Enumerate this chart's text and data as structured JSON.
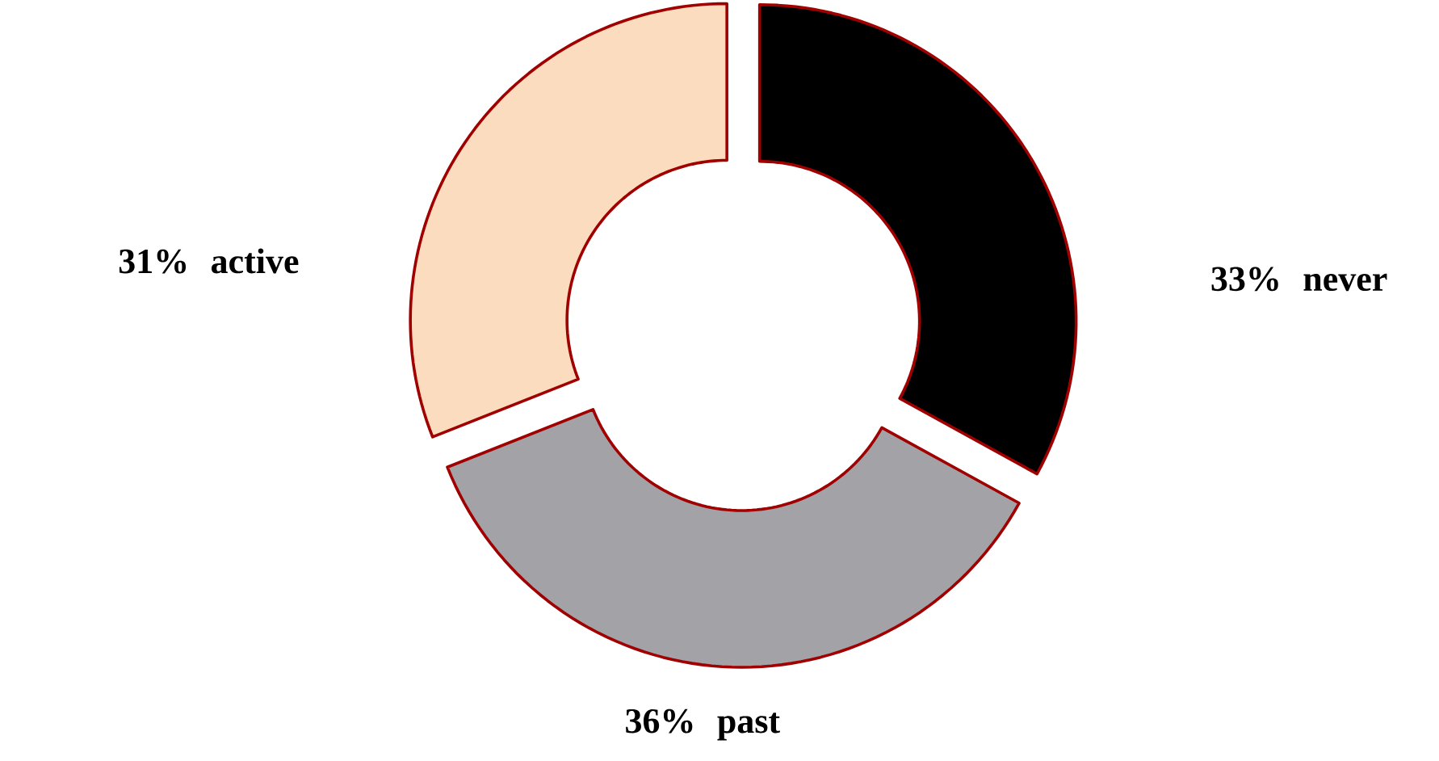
{
  "chart_data": {
    "type": "donut",
    "categories": [
      "never",
      "past",
      "active"
    ],
    "values": [
      33,
      36,
      31
    ],
    "value_labels": [
      "33%",
      "36%",
      "31%"
    ],
    "colors": [
      "#000000",
      "#a3a2a7",
      "#fcdcbe"
    ]
  }
}
